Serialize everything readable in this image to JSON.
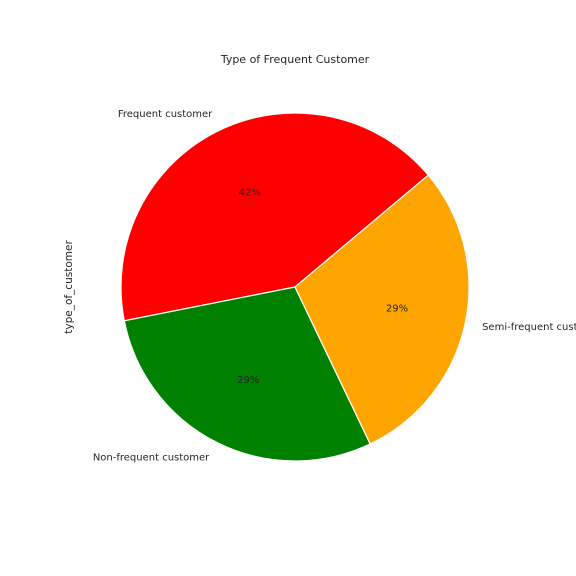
{
  "chart_data": {
    "type": "pie",
    "title": "Type of Frequent Customer",
    "ylabel": "type_of_customer",
    "categories": [
      "Frequent customer",
      "Non-frequent customer",
      "Semi-frequent customer"
    ],
    "values": [
      42,
      29,
      29
    ],
    "value_labels": [
      "42%",
      "29%",
      "29%"
    ],
    "colors": [
      "#ff0000",
      "#008000",
      "#ffa500"
    ],
    "start_angle_deg": 40,
    "direction": "counterclockwise"
  }
}
